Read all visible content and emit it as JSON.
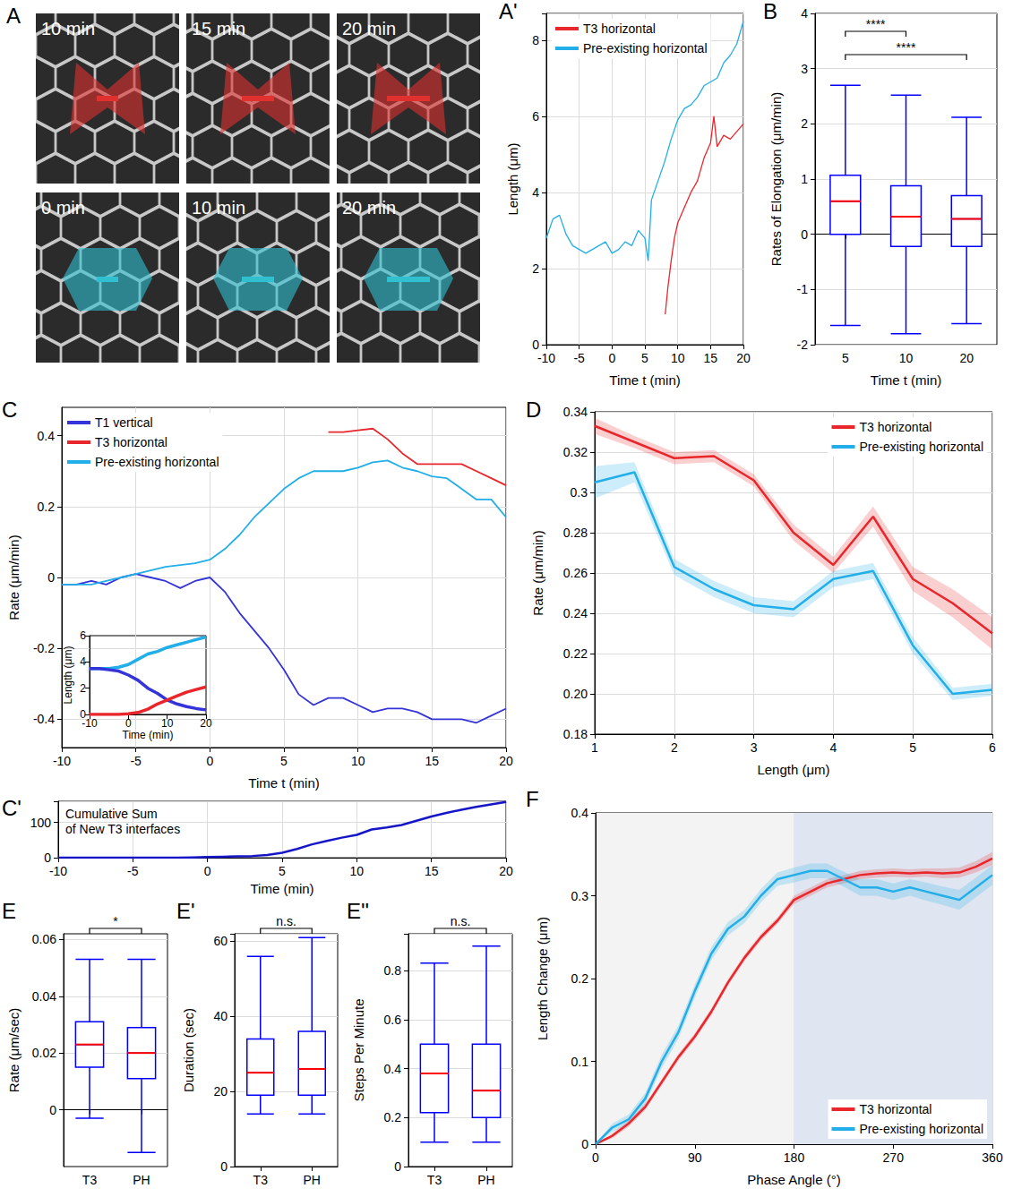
{
  "chart_data": [
    {
      "type": "image",
      "label": "A",
      "tiles": [
        {
          "text": "10 min",
          "color": "#e03030"
        },
        {
          "text": "15 min",
          "color": "#e03030"
        },
        {
          "text": "20 min",
          "color": "#e03030"
        },
        {
          "text": "0 min",
          "color": "#30c0d0"
        },
        {
          "text": "10 min",
          "color": "#30c0d0"
        },
        {
          "text": "20 min",
          "color": "#30c0d0"
        }
      ]
    },
    {
      "type": "line",
      "label": "A'",
      "xlabel": "Time t (min)",
      "ylabel": "Length (μm)",
      "xlim": [
        -10,
        20
      ],
      "ylim": [
        0,
        8.7
      ],
      "xticks": [
        -10,
        -5,
        0,
        5,
        10,
        15,
        20
      ],
      "yticks": [
        0,
        2,
        4,
        6,
        8
      ],
      "grid": true,
      "legend": "upper left",
      "series": [
        {
          "name": "T3 horizontal",
          "color": "#e8262b",
          "x": [
            8.1,
            8.5,
            9,
            9.5,
            10,
            10.5,
            11,
            12,
            13,
            14,
            15,
            15.5,
            16,
            17,
            18,
            19,
            20
          ],
          "values": [
            0.8,
            1.5,
            2.2,
            2.8,
            3.2,
            3.4,
            3.6,
            4.0,
            4.3,
            4.9,
            5.3,
            6.0,
            5.2,
            5.5,
            5.4,
            5.6,
            5.8
          ]
        },
        {
          "name": "Pre-existing horizontal",
          "color": "#22aee8",
          "x": [
            -10,
            -9,
            -8,
            -7,
            -6,
            -5,
            -4,
            -3,
            -2,
            -1,
            0,
            1,
            2,
            3,
            4,
            5,
            5.5,
            6,
            7,
            8,
            9,
            10,
            11,
            12,
            13,
            14,
            15,
            16,
            17,
            18,
            19,
            20
          ],
          "values": [
            2.8,
            3.3,
            3.4,
            2.9,
            2.6,
            2.5,
            2.4,
            2.5,
            2.6,
            2.7,
            2.4,
            2.5,
            2.7,
            2.6,
            3.0,
            2.8,
            2.2,
            3.8,
            4.3,
            4.8,
            5.4,
            5.9,
            6.2,
            6.3,
            6.5,
            6.8,
            6.9,
            7.0,
            7.4,
            7.6,
            7.9,
            8.5
          ]
        }
      ]
    },
    {
      "type": "boxplot",
      "label": "B",
      "xlabel": "Time t (min)",
      "ylabel": "Rates of Elongation (μm/min)",
      "categories": [
        "5",
        "10",
        "20"
      ],
      "ylim": [
        -2,
        4
      ],
      "yticks": [
        -2,
        -1,
        0,
        1,
        2,
        3,
        4
      ],
      "grid": true,
      "series": [
        {
          "color": "#0000ff",
          "values": [
            {
              "min": -1.65,
              "q1": 0,
              "median": 0.6,
              "q3": 1.07,
              "max": 2.7
            },
            {
              "min": -1.8,
              "q1": -0.22,
              "median": 0.32,
              "q3": 0.88,
              "max": 2.52
            },
            {
              "min": -1.62,
              "q1": -0.22,
              "median": 0.28,
              "q3": 0.7,
              "max": 2.12
            }
          ]
        }
      ],
      "annotations": [
        {
          "from": "5",
          "to": "10",
          "text": "****"
        },
        {
          "from": "5",
          "to": "20",
          "text": "****"
        }
      ]
    },
    {
      "type": "line",
      "label": "C",
      "xlabel": "Time t (min)",
      "ylabel": "Rate (μm/min)",
      "xlim": [
        -10,
        20
      ],
      "ylim": [
        -0.48,
        0.48
      ],
      "xticks": [
        -10,
        -5,
        0,
        5,
        10,
        15,
        20
      ],
      "yticks": [
        -0.4,
        -0.2,
        0,
        0.2,
        0.4
      ],
      "grid": true,
      "legend": "upper left",
      "x": [
        -10,
        -9,
        -8,
        -7,
        -6,
        -5,
        -4,
        -3,
        -2,
        -1,
        0,
        1,
        2,
        3,
        4,
        5,
        6,
        7,
        8,
        9,
        10,
        11,
        12,
        13,
        14,
        15,
        16,
        17,
        18,
        19,
        20
      ],
      "series": [
        {
          "name": "T1 vertical",
          "color": "#3434d8",
          "values": [
            -0.02,
            -0.02,
            -0.01,
            -0.02,
            0.0,
            0.01,
            0.0,
            -0.01,
            -0.03,
            -0.01,
            0.0,
            -0.04,
            -0.1,
            -0.15,
            -0.2,
            -0.26,
            -0.33,
            -0.36,
            -0.34,
            -0.34,
            -0.36,
            -0.38,
            -0.37,
            -0.37,
            -0.38,
            -0.4,
            -0.4,
            -0.4,
            -0.41,
            -0.39,
            -0.37
          ]
        },
        {
          "name": "T3 horizontal",
          "color": "#e8262b",
          "values": [
            null,
            null,
            null,
            null,
            null,
            null,
            null,
            null,
            null,
            null,
            null,
            null,
            null,
            null,
            null,
            null,
            null,
            null,
            0.41,
            0.41,
            0.415,
            0.42,
            0.39,
            0.35,
            0.32,
            0.32,
            0.32,
            0.32,
            0.3,
            0.28,
            0.26
          ]
        },
        {
          "name": "Pre-existing horizontal",
          "color": "#22aee8",
          "values": [
            -0.02,
            -0.02,
            -0.02,
            -0.01,
            0.0,
            0.01,
            0.02,
            0.03,
            0.035,
            0.04,
            0.05,
            0.08,
            0.12,
            0.17,
            0.21,
            0.25,
            0.28,
            0.3,
            0.3,
            0.3,
            0.31,
            0.325,
            0.33,
            0.31,
            0.3,
            0.285,
            0.28,
            0.25,
            0.22,
            0.22,
            0.17
          ]
        }
      ],
      "inset": {
        "type": "line",
        "xlabel": "Time (min)",
        "ylabel": "Length (μm)",
        "xlim": [
          -10,
          20
        ],
        "ylim": [
          0,
          6
        ],
        "xticks": [
          -10,
          0,
          10,
          20
        ],
        "yticks": [
          0,
          2,
          4,
          6
        ],
        "x": [
          -10,
          -7.5,
          -5,
          -2.5,
          0,
          2.5,
          5,
          7.5,
          10,
          12.5,
          15,
          17.5,
          20
        ],
        "series": [
          {
            "color": "#22aee8",
            "values": [
              3.5,
              3.5,
              3.5,
              3.6,
              3.8,
              4.2,
              4.6,
              4.8,
              5.1,
              5.3,
              5.5,
              5.7,
              5.9
            ]
          },
          {
            "color": "#3434d8",
            "values": [
              3.5,
              3.5,
              3.4,
              3.3,
              3.0,
              2.6,
              2.0,
              1.6,
              1.1,
              0.8,
              0.6,
              0.45,
              0.35
            ]
          },
          {
            "color": "#e8262b",
            "values": [
              0,
              0,
              0,
              0,
              0.05,
              0.15,
              0.4,
              0.8,
              1.1,
              1.4,
              1.7,
              1.9,
              2.1
            ]
          }
        ]
      }
    },
    {
      "type": "line",
      "label": "C'",
      "xlabel": "Time (min)",
      "xlim": [
        -10,
        20
      ],
      "ylim": [
        0,
        160
      ],
      "xticks": [
        -10,
        -5,
        0,
        5,
        10,
        15,
        20
      ],
      "yticks": [
        0,
        100
      ],
      "grid": true,
      "annotation": [
        "Cumulative Sum",
        "of New T3 interfaces"
      ],
      "x": [
        -10,
        -9,
        -8,
        -7,
        -6,
        -5,
        -4,
        -3,
        -2,
        -1,
        0,
        1,
        2,
        3,
        4,
        5,
        6,
        7,
        8,
        9,
        10,
        11,
        12,
        13,
        14,
        15,
        16,
        17,
        18,
        19,
        20
      ],
      "series": [
        {
          "color": "#1616c8",
          "values": [
            0,
            0,
            0,
            0,
            0,
            0,
            0,
            0,
            0,
            1,
            2,
            3,
            4,
            5,
            8,
            14,
            25,
            38,
            48,
            57,
            65,
            80,
            86,
            93,
            105,
            117,
            127,
            136,
            144,
            151,
            158
          ]
        }
      ]
    },
    {
      "type": "line",
      "label": "D",
      "xlabel": "Length (μm)",
      "ylabel": "Rate (μm/min)",
      "xlim": [
        1,
        6
      ],
      "ylim": [
        0.18,
        0.34
      ],
      "xticks": [
        1,
        2,
        3,
        4,
        5,
        6
      ],
      "yticks": [
        0.18,
        {
          "value": 0.2,
          "label": "0.20"
        },
        0.22,
        0.24,
        0.26,
        0.28,
        0.3,
        0.32,
        0.34
      ],
      "grid": true,
      "legend": "upper right",
      "x": [
        1,
        1.5,
        2,
        2.5,
        3,
        3.5,
        4,
        4.5,
        5,
        5.5,
        6
      ],
      "series": [
        {
          "name": "T3 horizontal",
          "color": "#e8262b",
          "values": [
            0.333,
            0.325,
            0.317,
            0.318,
            0.306,
            0.28,
            0.264,
            0.288,
            0.257,
            0.245,
            0.23
          ],
          "error": [
            0.004,
            0.003,
            0.003,
            0.003,
            0.003,
            0.004,
            0.004,
            0.005,
            0.006,
            0.007,
            0.008
          ]
        },
        {
          "name": "Pre-existing horizontal",
          "color": "#22aee8",
          "values": [
            0.305,
            0.31,
            0.263,
            0.252,
            0.244,
            0.242,
            0.257,
            0.261,
            0.224,
            0.2,
            0.202
          ],
          "error": [
            0.008,
            0.005,
            0.004,
            0.004,
            0.004,
            0.004,
            0.004,
            0.004,
            0.004,
            0.003,
            0.003
          ]
        }
      ]
    },
    {
      "type": "boxplot",
      "label": "E",
      "ylabel": "Rate (μm/sec)",
      "categories": [
        "T3",
        "PH"
      ],
      "ylim": [
        -0.02,
        0.062
      ],
      "yticks": [
        0,
        0.02,
        0.04,
        0.06
      ],
      "grid": true,
      "series": [
        {
          "color": "#0000ff",
          "values": [
            {
              "min": -0.003,
              "q1": 0.015,
              "median": 0.023,
              "q3": 0.031,
              "max": 0.053
            },
            {
              "min": -0.015,
              "q1": 0.011,
              "median": 0.02,
              "q3": 0.029,
              "max": 0.053
            }
          ]
        }
      ],
      "annotations": [
        {
          "from": "T3",
          "to": "PH",
          "text": "*"
        }
      ]
    },
    {
      "type": "boxplot",
      "label": "E'",
      "ylabel": "Duration (sec)",
      "categories": [
        "T3",
        "PH"
      ],
      "ylim": [
        0,
        62
      ],
      "yticks": [
        0,
        20,
        40,
        60
      ],
      "grid": true,
      "series": [
        {
          "color": "#0000ff",
          "values": [
            {
              "min": 14,
              "q1": 19,
              "median": 25,
              "q3": 34,
              "max": 56
            },
            {
              "min": 14,
              "q1": 19,
              "median": 26,
              "q3": 36,
              "max": 61
            }
          ]
        }
      ],
      "annotations": [
        {
          "from": "T3",
          "to": "PH",
          "text": "n.s."
        }
      ]
    },
    {
      "type": "boxplot",
      "label": "E''",
      "ylabel": "Steps Per Minute",
      "categories": [
        "T3",
        "PH"
      ],
      "ylim": [
        0,
        0.95
      ],
      "yticks": [
        0,
        0.2,
        0.4,
        0.6,
        0.8
      ],
      "grid": true,
      "series": [
        {
          "color": "#0000ff",
          "values": [
            {
              "min": 0.1,
              "q1": 0.22,
              "median": 0.38,
              "q3": 0.5,
              "max": 0.83
            },
            {
              "min": 0.1,
              "q1": 0.2,
              "median": 0.31,
              "q3": 0.5,
              "max": 0.9
            }
          ]
        }
      ],
      "annotations": [
        {
          "from": "T3",
          "to": "PH",
          "text": "n.s."
        }
      ]
    },
    {
      "type": "line",
      "label": "F",
      "xlabel": "Phase Angle (°)",
      "ylabel": "Length Change (μm)",
      "xlim": [
        0,
        360
      ],
      "ylim": [
        0,
        0.4
      ],
      "xticks": [
        0,
        90,
        180,
        270,
        360
      ],
      "yticks": [
        0,
        0.1,
        0.2,
        0.3,
        0.4
      ],
      "grid": true,
      "legend": "lower right",
      "regions": [
        {
          "from": 0,
          "to": 180,
          "color": "#f3f3f3"
        },
        {
          "from": 180,
          "to": 360,
          "color": "#dfe6f1"
        }
      ],
      "x": [
        0,
        15,
        30,
        45,
        60,
        75,
        90,
        105,
        120,
        135,
        150,
        165,
        180,
        195,
        210,
        225,
        240,
        255,
        270,
        285,
        300,
        315,
        330,
        345,
        360
      ],
      "series": [
        {
          "name": "T3 horizontal",
          "color": "#e8262b",
          "values": [
            0,
            0.01,
            0.025,
            0.045,
            0.075,
            0.105,
            0.13,
            0.16,
            0.195,
            0.225,
            0.25,
            0.27,
            0.295,
            0.305,
            0.315,
            0.32,
            0.325,
            0.327,
            0.328,
            0.327,
            0.328,
            0.327,
            0.328,
            0.335,
            0.345
          ],
          "error": [
            0,
            0.003,
            0.004,
            0.004,
            0.004,
            0.004,
            0.004,
            0.004,
            0.004,
            0.004,
            0.004,
            0.004,
            0.005,
            0.005,
            0.005,
            0.005,
            0.005,
            0.005,
            0.005,
            0.005,
            0.005,
            0.006,
            0.006,
            0.007,
            0.008
          ]
        },
        {
          "name": "Pre-existing horizontal",
          "color": "#22aee8",
          "values": [
            0,
            0.02,
            0.03,
            0.055,
            0.1,
            0.135,
            0.185,
            0.23,
            0.26,
            0.275,
            0.3,
            0.32,
            0.325,
            0.33,
            0.33,
            0.32,
            0.31,
            0.31,
            0.305,
            0.31,
            0.305,
            0.3,
            0.295,
            0.31,
            0.325
          ],
          "error": [
            0,
            0.005,
            0.006,
            0.007,
            0.008,
            0.008,
            0.008,
            0.008,
            0.008,
            0.008,
            0.008,
            0.008,
            0.009,
            0.009,
            0.009,
            0.009,
            0.01,
            0.01,
            0.01,
            0.01,
            0.011,
            0.011,
            0.012,
            0.012,
            0.012
          ]
        }
      ]
    }
  ]
}
